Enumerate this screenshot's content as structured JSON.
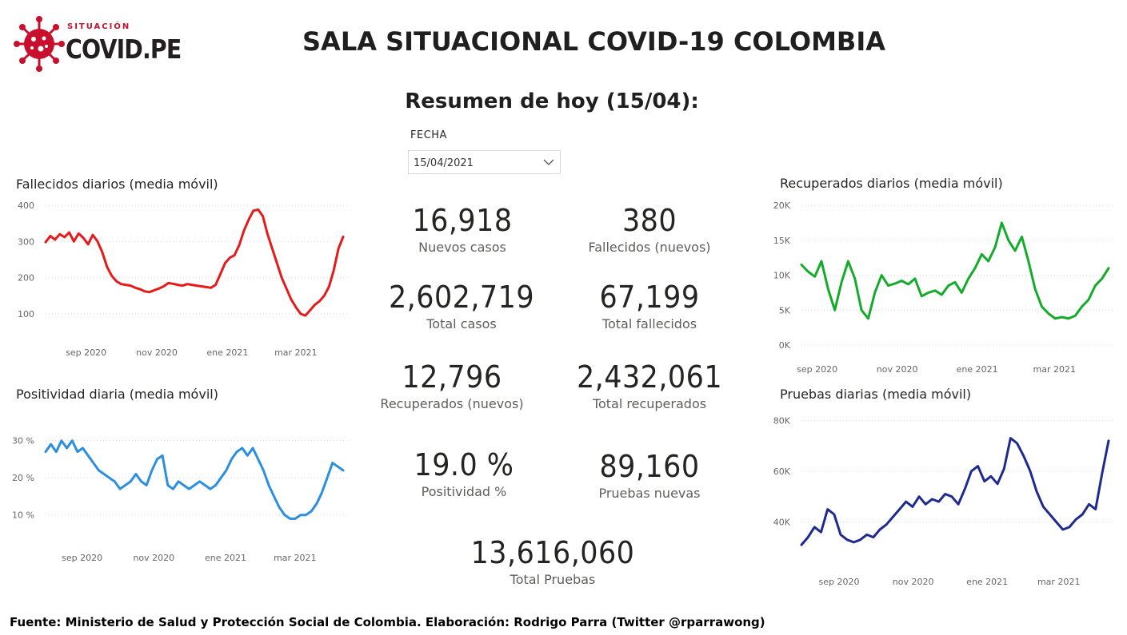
{
  "header": {
    "logo_top": "SITUACIÓN",
    "logo_main": "COVID.PE",
    "title": "SALA SITUACIONAL COVID-19 COLOMBIA",
    "subtitle": "Resumen de hoy (15/04):"
  },
  "filter": {
    "label": "FECHA",
    "value": "15/04/2021"
  },
  "kpis": {
    "nuevos_casos": {
      "value": "16,918",
      "label": "Nuevos casos"
    },
    "fallecidos_nuevos": {
      "value": "380",
      "label": "Fallecidos (nuevos)"
    },
    "total_casos": {
      "value": "2,602,719",
      "label": "Total casos"
    },
    "total_fallecidos": {
      "value": "67,199",
      "label": "Total fallecidos"
    },
    "recuperados_nuevos": {
      "value": "12,796",
      "label": "Recuperados (nuevos)"
    },
    "total_recuperados": {
      "value": "2,432,061",
      "label": "Total recuperados"
    },
    "positividad": {
      "value": "19.0 %",
      "label": "Positividad %"
    },
    "pruebas_nuevas": {
      "value": "89,160",
      "label": "Pruebas nuevas"
    },
    "total_pruebas": {
      "value": "13,616,060",
      "label": "Total Pruebas"
    }
  },
  "colors": {
    "fallecidos": "#e51b1b",
    "positividad": "#2b8fe0",
    "recuperados": "#15ab2a",
    "pruebas": "#1f2a8f",
    "logo_red": "#c8102e"
  },
  "chart_data": [
    {
      "id": "fallecidos",
      "type": "line",
      "title": "Fallecidos diarios (media móvil)",
      "x_start": "2020-07-28",
      "x_ticks": [
        {
          "date": "2020-09-01",
          "label": "sep 2020"
        },
        {
          "date": "2020-11-01",
          "label": "nov 2020"
        },
        {
          "date": "2021-01-01",
          "label": "ene 2021"
        },
        {
          "date": "2021-03-01",
          "label": "mar 2021"
        }
      ],
      "y_ticks": [
        {
          "v": 100,
          "label": "100"
        },
        {
          "v": 200,
          "label": "200"
        },
        {
          "v": 300,
          "label": "300"
        },
        {
          "v": 400,
          "label": "400"
        }
      ],
      "ylim": [
        60,
        400
      ],
      "series": [
        {
          "values": [
            298,
            315,
            305,
            320,
            312,
            325,
            300,
            322,
            310,
            292,
            318,
            300,
            270,
            230,
            205,
            190,
            182,
            180,
            178,
            172,
            168,
            162,
            160,
            165,
            170,
            176,
            185,
            183,
            180,
            178,
            182,
            180,
            178,
            176,
            174,
            172,
            180,
            210,
            240,
            255,
            262,
            290,
            330,
            360,
            385,
            388,
            370,
            320,
            280,
            240,
            200,
            170,
            140,
            118,
            100,
            95,
            110,
            125,
            135,
            150,
            175,
            220,
            280,
            313
          ]
        }
      ],
      "grid": true
    },
    {
      "id": "positividad",
      "type": "line",
      "title": "Positividad diaria (media móvil)",
      "x_start": "2020-08-01",
      "x_ticks": [
        {
          "date": "2020-09-01",
          "label": "sep 2020"
        },
        {
          "date": "2020-11-01",
          "label": "nov 2020"
        },
        {
          "date": "2021-01-01",
          "label": "ene 2021"
        },
        {
          "date": "2021-03-01",
          "label": "mar 2021"
        }
      ],
      "y_ticks": [
        {
          "v": 10,
          "label": "10 %"
        },
        {
          "v": 20,
          "label": "20 %"
        },
        {
          "v": 30,
          "label": "30 %"
        }
      ],
      "ylim": [
        5,
        31
      ],
      "series": [
        {
          "values": [
            27,
            29,
            27,
            30,
            28,
            30,
            27,
            28,
            26,
            24,
            22,
            21,
            20,
            19,
            17,
            18,
            19,
            21,
            19,
            18,
            22,
            25,
            26,
            18,
            17,
            19,
            18,
            17,
            18,
            19,
            18,
            17,
            18,
            20,
            22,
            25,
            27,
            28,
            26,
            28,
            25,
            22,
            18,
            15,
            12,
            10,
            9,
            9,
            10,
            10,
            11,
            13,
            16,
            20,
            24,
            23,
            22
          ]
        }
      ],
      "grid": true
    },
    {
      "id": "recuperados",
      "type": "line",
      "title": "Recuperados diarios (media móvil)",
      "x_start": "2020-08-20",
      "x_ticks": [
        {
          "date": "2020-09-01",
          "label": "sep 2020"
        },
        {
          "date": "2020-11-01",
          "label": "nov 2020"
        },
        {
          "date": "2021-01-01",
          "label": "ene 2021"
        },
        {
          "date": "2021-03-01",
          "label": "mar 2021"
        }
      ],
      "y_ticks": [
        {
          "v": 0,
          "label": "0K"
        },
        {
          "v": 5000,
          "label": "5K"
        },
        {
          "v": 10000,
          "label": "10K"
        },
        {
          "v": 15000,
          "label": "15K"
        },
        {
          "v": 20000,
          "label": "20K"
        }
      ],
      "ylim": [
        0,
        20000
      ],
      "series": [
        {
          "values": [
            11500,
            10500,
            9800,
            12000,
            8000,
            5000,
            9000,
            12000,
            9500,
            5000,
            3800,
            7500,
            10000,
            8500,
            8800,
            9200,
            8700,
            9500,
            7000,
            7500,
            7800,
            7200,
            8500,
            9000,
            7500,
            9500,
            11000,
            13000,
            12000,
            14000,
            17500,
            15000,
            13500,
            15500,
            12000,
            8000,
            5500,
            4500,
            3800,
            4000,
            3800,
            4200,
            5500,
            6500,
            8500,
            9500,
            11000
          ]
        }
      ],
      "grid": true
    },
    {
      "id": "pruebas",
      "type": "line",
      "title": "Pruebas diarias (media móvil)",
      "x_start": "2020-08-01",
      "x_ticks": [
        {
          "date": "2020-09-01",
          "label": "sep 2020"
        },
        {
          "date": "2020-11-01",
          "label": "nov 2020"
        },
        {
          "date": "2021-01-01",
          "label": "ene 2021"
        },
        {
          "date": "2021-03-01",
          "label": "mar 2021"
        }
      ],
      "y_ticks": [
        {
          "v": 40000,
          "label": "40K"
        },
        {
          "v": 60000,
          "label": "60K"
        },
        {
          "v": 80000,
          "label": "80K"
        }
      ],
      "ylim": [
        26000,
        82000
      ],
      "series": [
        {
          "values": [
            31000,
            34000,
            38000,
            36000,
            45000,
            43000,
            35000,
            33000,
            32000,
            33000,
            35000,
            34000,
            37000,
            39000,
            42000,
            45000,
            48000,
            46000,
            50000,
            47000,
            49000,
            48000,
            51000,
            50000,
            47000,
            53000,
            60000,
            62000,
            56000,
            58000,
            55000,
            61000,
            73000,
            71000,
            66000,
            60000,
            52000,
            46000,
            43000,
            40000,
            37000,
            38000,
            41000,
            43000,
            47000,
            45000,
            59000,
            72000
          ]
        }
      ],
      "grid": true
    }
  ],
  "footer": "Fuente: Ministerio de Salud y Protección Social de Colombia. Elaboración: Rodrigo Parra (Twitter @rparrawong)"
}
